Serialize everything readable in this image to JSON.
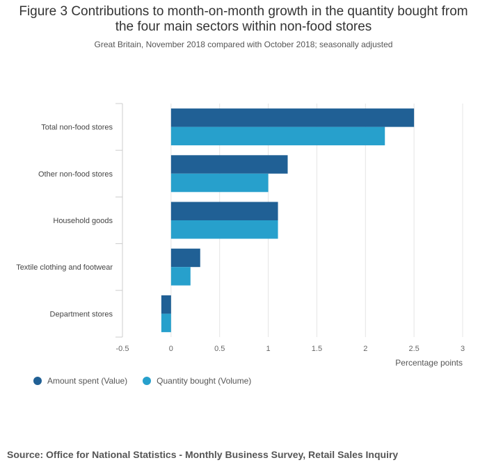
{
  "chart_data": {
    "type": "bar",
    "orientation": "horizontal",
    "title": "Figure 3 Contributions to month-on-month growth in the quantity bought from the four main sectors within non-food stores",
    "subtitle": "Great Britain, November 2018 compared with October 2018; seasonally adjusted",
    "categories": [
      "Total non-food stores",
      "Other non-food stores",
      "Household goods",
      "Textile clothing and footwear",
      "Department stores"
    ],
    "series": [
      {
        "name": "Amount spent (Value)",
        "color": "#206095",
        "values": [
          2.5,
          1.2,
          1.1,
          0.3,
          -0.1
        ]
      },
      {
        "name": "Quantity bought (Volume)",
        "color": "#27a0cc",
        "values": [
          2.2,
          1.0,
          1.1,
          0.2,
          -0.1
        ]
      }
    ],
    "xlabel": "Percentage points",
    "xlim": [
      -0.5,
      3
    ],
    "xticks": [
      -0.5,
      0,
      0.5,
      1,
      1.5,
      2,
      2.5,
      3
    ],
    "xtick_labels": [
      "-0.5",
      "0",
      "0.5",
      "1",
      "1.5",
      "2",
      "2.5",
      "3"
    ],
    "grid": true,
    "legend_position": "bottom-left"
  },
  "source": "Source: Office for National Statistics - Monthly Business Survey, Retail Sales Inquiry"
}
